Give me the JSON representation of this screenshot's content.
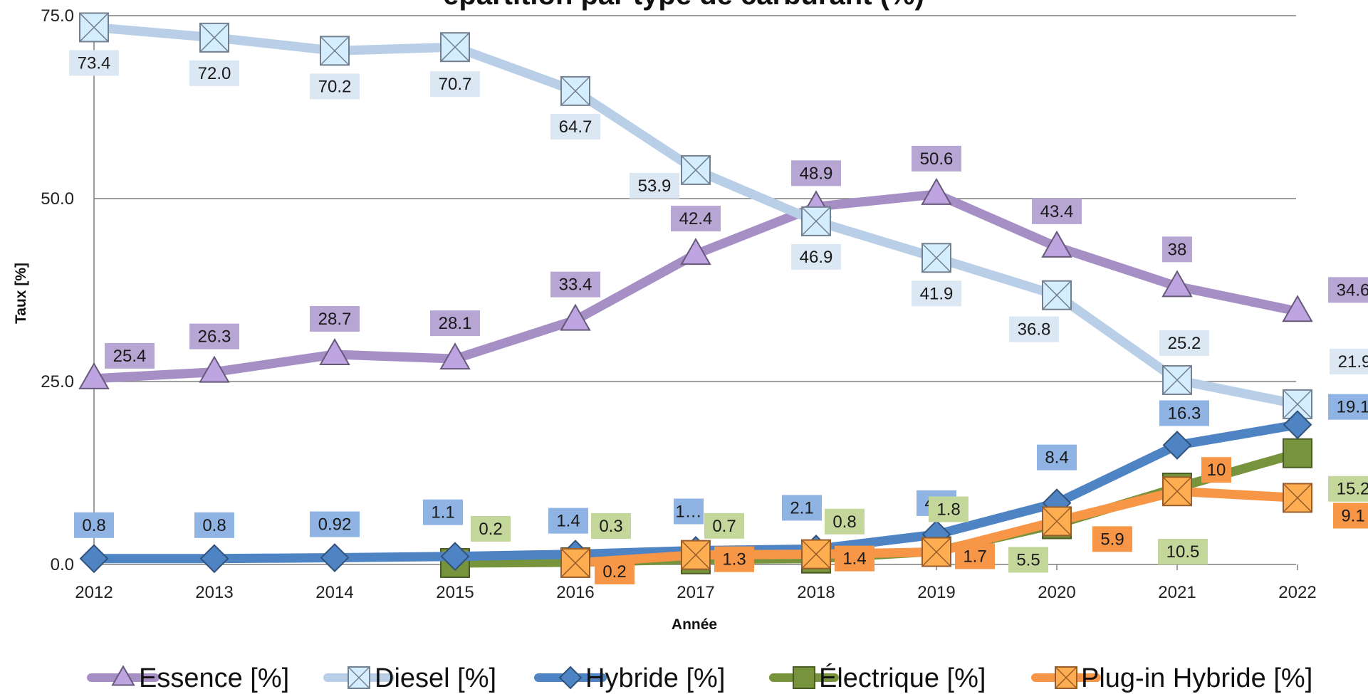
{
  "chart_data": {
    "type": "line",
    "title": "épartition par type de carburant (%)",
    "xlabel": "Année",
    "ylabel": "Taux [%]",
    "ylim": [
      0,
      75
    ],
    "yticks": [
      "0.0",
      "25.0",
      "50.0",
      "75.0"
    ],
    "grid": true,
    "legend": "bottom",
    "categories": [
      "2012",
      "2013",
      "2014",
      "2015",
      "2016",
      "2017",
      "2018",
      "2019",
      "2020",
      "2021",
      "2022"
    ],
    "series": [
      {
        "name": "Essence [%]",
        "marker": "triangle",
        "color": "#a58fc4",
        "label_bg": "#b7a5d3",
        "values": [
          25.4,
          26.3,
          28.7,
          28.1,
          33.4,
          42.4,
          48.9,
          50.6,
          43.4,
          38,
          34.6
        ],
        "labels": [
          "25.4",
          "26.3",
          "28.7",
          "28.1",
          "33.4",
          "42.4",
          "48.9",
          "50.6",
          "43.4",
          "38",
          "34.6"
        ]
      },
      {
        "name": "Diesel [%]",
        "marker": "square-x",
        "color": "#b9cfe8",
        "label_bg": "#dce7f4",
        "values": [
          73.4,
          72.0,
          70.2,
          70.7,
          64.7,
          53.9,
          46.9,
          41.9,
          36.8,
          25.2,
          21.9
        ],
        "labels": [
          "73.4",
          "72.0",
          "70.2",
          "70.7",
          "64.7",
          "53.9",
          "46.9",
          "41.9",
          "36.8",
          "25.2",
          "21.9"
        ]
      },
      {
        "name": "Hybride [%]",
        "marker": "diamond",
        "color": "#4f84c4",
        "label_bg": "#8fb4e3",
        "values": [
          0.8,
          0.8,
          0.92,
          1.1,
          1.4,
          1.9,
          2.1,
          4.1,
          8.4,
          16.3,
          19.1
        ],
        "labels": [
          "0.8",
          "0.8",
          "0.92",
          "1.1",
          "1.4",
          "1…",
          "2.1",
          "4.1",
          "8.4",
          "16.3",
          "19.1"
        ]
      },
      {
        "name": "Électrique [%]",
        "marker": "square",
        "color": "#77933c",
        "label_bg": "#c4d79b",
        "values": [
          null,
          null,
          null,
          0.2,
          0.3,
          0.7,
          0.8,
          1.8,
          5.5,
          10.5,
          15.2
        ],
        "labels": [
          null,
          null,
          null,
          "0.2",
          "0.3",
          "0.7",
          "0.8",
          "1.8",
          "5.5",
          "10.5",
          "15.2"
        ]
      },
      {
        "name": "Plug-in Hybride [%]",
        "marker": "square-x",
        "color": "#f79646",
        "label_bg": "#f79646",
        "values": [
          null,
          null,
          null,
          null,
          0.2,
          1.3,
          1.4,
          1.7,
          5.9,
          10,
          9.1
        ],
        "labels": [
          null,
          null,
          null,
          null,
          "0.2",
          "1.3",
          "1.4",
          "1.7",
          "5.9",
          "10",
          "9.1"
        ]
      }
    ]
  }
}
